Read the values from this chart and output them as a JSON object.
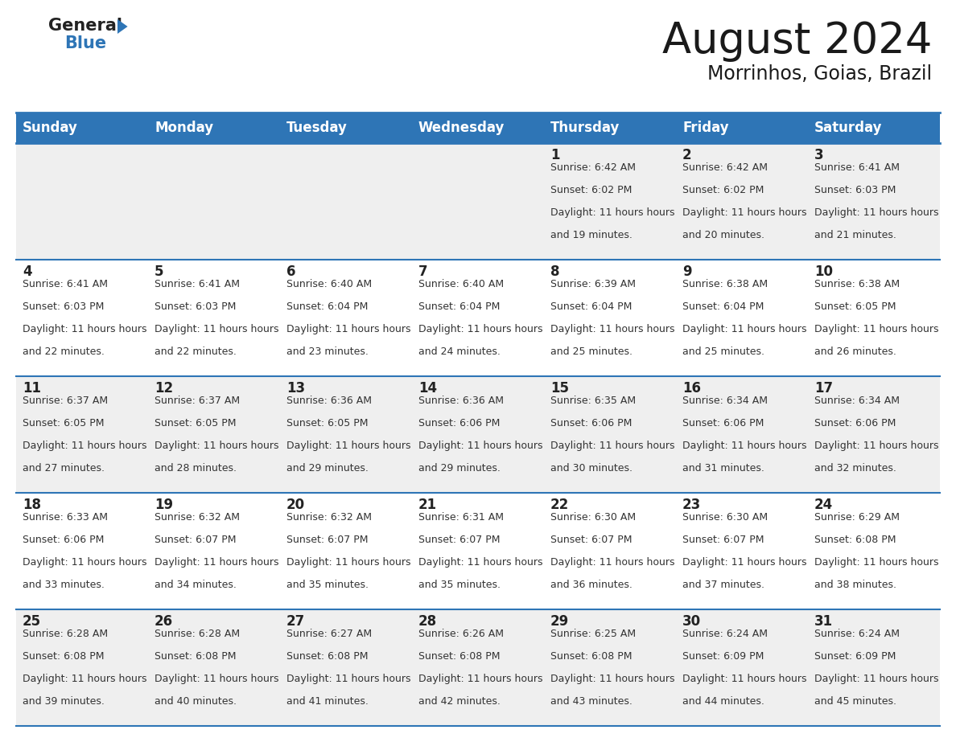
{
  "title": "August 2024",
  "subtitle": "Morrinhos, Goias, Brazil",
  "header_color": "#2E75B6",
  "header_text_color": "#FFFFFF",
  "cell_bg_odd": "#EFEFEF",
  "cell_bg_even": "#FFFFFF",
  "day_number_color": "#222222",
  "cell_text_color": "#333333",
  "border_color": "#2E75B6",
  "days_of_week": [
    "Sunday",
    "Monday",
    "Tuesday",
    "Wednesday",
    "Thursday",
    "Friday",
    "Saturday"
  ],
  "weeks": [
    [
      {
        "day": null,
        "sunrise": null,
        "sunset": null,
        "daylight": null
      },
      {
        "day": null,
        "sunrise": null,
        "sunset": null,
        "daylight": null
      },
      {
        "day": null,
        "sunrise": null,
        "sunset": null,
        "daylight": null
      },
      {
        "day": null,
        "sunrise": null,
        "sunset": null,
        "daylight": null
      },
      {
        "day": 1,
        "sunrise": "6:42 AM",
        "sunset": "6:02 PM",
        "daylight": "11 hours and 19 minutes."
      },
      {
        "day": 2,
        "sunrise": "6:42 AM",
        "sunset": "6:02 PM",
        "daylight": "11 hours and 20 minutes."
      },
      {
        "day": 3,
        "sunrise": "6:41 AM",
        "sunset": "6:03 PM",
        "daylight": "11 hours and 21 minutes."
      }
    ],
    [
      {
        "day": 4,
        "sunrise": "6:41 AM",
        "sunset": "6:03 PM",
        "daylight": "11 hours and 22 minutes."
      },
      {
        "day": 5,
        "sunrise": "6:41 AM",
        "sunset": "6:03 PM",
        "daylight": "11 hours and 22 minutes."
      },
      {
        "day": 6,
        "sunrise": "6:40 AM",
        "sunset": "6:04 PM",
        "daylight": "11 hours and 23 minutes."
      },
      {
        "day": 7,
        "sunrise": "6:40 AM",
        "sunset": "6:04 PM",
        "daylight": "11 hours and 24 minutes."
      },
      {
        "day": 8,
        "sunrise": "6:39 AM",
        "sunset": "6:04 PM",
        "daylight": "11 hours and 25 minutes."
      },
      {
        "day": 9,
        "sunrise": "6:38 AM",
        "sunset": "6:04 PM",
        "daylight": "11 hours and 25 minutes."
      },
      {
        "day": 10,
        "sunrise": "6:38 AM",
        "sunset": "6:05 PM",
        "daylight": "11 hours and 26 minutes."
      }
    ],
    [
      {
        "day": 11,
        "sunrise": "6:37 AM",
        "sunset": "6:05 PM",
        "daylight": "11 hours and 27 minutes."
      },
      {
        "day": 12,
        "sunrise": "6:37 AM",
        "sunset": "6:05 PM",
        "daylight": "11 hours and 28 minutes."
      },
      {
        "day": 13,
        "sunrise": "6:36 AM",
        "sunset": "6:05 PM",
        "daylight": "11 hours and 29 minutes."
      },
      {
        "day": 14,
        "sunrise": "6:36 AM",
        "sunset": "6:06 PM",
        "daylight": "11 hours and 29 minutes."
      },
      {
        "day": 15,
        "sunrise": "6:35 AM",
        "sunset": "6:06 PM",
        "daylight": "11 hours and 30 minutes."
      },
      {
        "day": 16,
        "sunrise": "6:34 AM",
        "sunset": "6:06 PM",
        "daylight": "11 hours and 31 minutes."
      },
      {
        "day": 17,
        "sunrise": "6:34 AM",
        "sunset": "6:06 PM",
        "daylight": "11 hours and 32 minutes."
      }
    ],
    [
      {
        "day": 18,
        "sunrise": "6:33 AM",
        "sunset": "6:06 PM",
        "daylight": "11 hours and 33 minutes."
      },
      {
        "day": 19,
        "sunrise": "6:32 AM",
        "sunset": "6:07 PM",
        "daylight": "11 hours and 34 minutes."
      },
      {
        "day": 20,
        "sunrise": "6:32 AM",
        "sunset": "6:07 PM",
        "daylight": "11 hours and 35 minutes."
      },
      {
        "day": 21,
        "sunrise": "6:31 AM",
        "sunset": "6:07 PM",
        "daylight": "11 hours and 35 minutes."
      },
      {
        "day": 22,
        "sunrise": "6:30 AM",
        "sunset": "6:07 PM",
        "daylight": "11 hours and 36 minutes."
      },
      {
        "day": 23,
        "sunrise": "6:30 AM",
        "sunset": "6:07 PM",
        "daylight": "11 hours and 37 minutes."
      },
      {
        "day": 24,
        "sunrise": "6:29 AM",
        "sunset": "6:08 PM",
        "daylight": "11 hours and 38 minutes."
      }
    ],
    [
      {
        "day": 25,
        "sunrise": "6:28 AM",
        "sunset": "6:08 PM",
        "daylight": "11 hours and 39 minutes."
      },
      {
        "day": 26,
        "sunrise": "6:28 AM",
        "sunset": "6:08 PM",
        "daylight": "11 hours and 40 minutes."
      },
      {
        "day": 27,
        "sunrise": "6:27 AM",
        "sunset": "6:08 PM",
        "daylight": "11 hours and 41 minutes."
      },
      {
        "day": 28,
        "sunrise": "6:26 AM",
        "sunset": "6:08 PM",
        "daylight": "11 hours and 42 minutes."
      },
      {
        "day": 29,
        "sunrise": "6:25 AM",
        "sunset": "6:08 PM",
        "daylight": "11 hours and 43 minutes."
      },
      {
        "day": 30,
        "sunrise": "6:24 AM",
        "sunset": "6:09 PM",
        "daylight": "11 hours and 44 minutes."
      },
      {
        "day": 31,
        "sunrise": "6:24 AM",
        "sunset": "6:09 PM",
        "daylight": "11 hours and 45 minutes."
      }
    ]
  ],
  "title_fontsize": 38,
  "subtitle_fontsize": 17,
  "header_fontsize": 12,
  "day_number_fontsize": 12,
  "cell_text_fontsize": 9
}
